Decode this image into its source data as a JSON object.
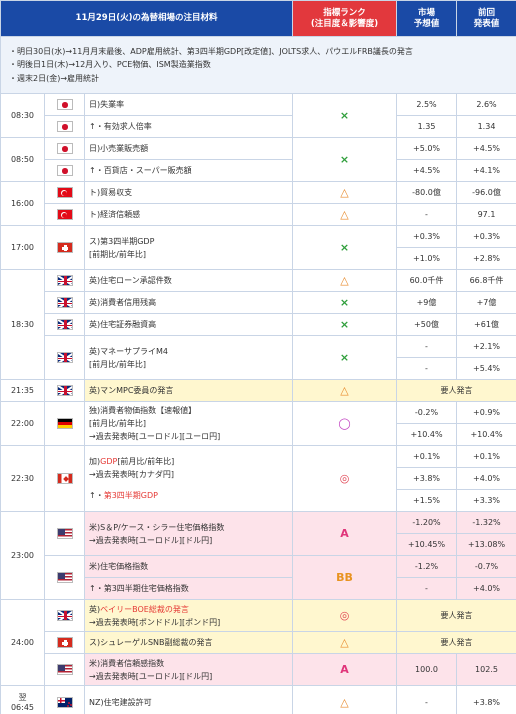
{
  "header": {
    "title": "11月29日(火)の為替相場の注目材料",
    "rank": "指標ランク",
    "rank_sub": "(注目度＆影響度)",
    "forecast": "市場",
    "forecast_sub": "予想値",
    "previous": "前回",
    "previous_sub": "発表値"
  },
  "notes": [
    "・明日30日(水)→11月月末最後、ADP雇用統計、第3四半期GDP[改定値]、JOLTS求人、パウエルFRB議長の発言",
    "・明後日1日(木)→12月入り、PCE物価、ISM製造業指数",
    "・週末2日(金)→雇用統計"
  ],
  "times": {
    "t0830": "08:30",
    "t0850": "08:50",
    "t1600": "16:00",
    "t1700": "17:00",
    "t1830": "18:30",
    "t2135": "21:35",
    "t2200": "22:00",
    "t2230": "22:30",
    "t2300": "23:00",
    "t2400": "24:00",
    "t0645a": "翌",
    "t0645b": "06:45"
  },
  "symbols": {
    "x": "×",
    "tri": "△",
    "circ": "◯",
    "dbl": "◎",
    "a": "A",
    "bb": "BB"
  },
  "rows": {
    "jp_unemp": {
      "name": "日)失業率",
      "f": "2.5%",
      "p": "2.6%"
    },
    "jp_jobs": {
      "name": "↑・有効求人倍率",
      "f": "1.35",
      "p": "1.34"
    },
    "jp_retail": {
      "name": "日)小売業販売額",
      "f": "+5.0%",
      "p": "+4.5%"
    },
    "jp_dept": {
      "name": "↑・百貨店・スーパー販売額",
      "f": "+4.5%",
      "p": "+4.1%"
    },
    "tr_trade": {
      "name": "ト)貿易収支",
      "f": "-80.0億",
      "p": "-96.0億"
    },
    "tr_conf": {
      "name": "ト)経済信頼感",
      "f": "-",
      "p": "97.1"
    },
    "ch_gdp": {
      "name1": "ス)第3四半期GDP",
      "name2": "[前期比/前年比]",
      "f1": "+0.3%",
      "p1": "+0.3%",
      "f2": "+1.0%",
      "p2": "+2.8%"
    },
    "gb_mort": {
      "name": "英)住宅ローン承認件数",
      "f": "60.0千件",
      "p": "66.8千件"
    },
    "gb_cons": {
      "name": "英)消費者信用残高",
      "f": "+9億",
      "p": "+7億"
    },
    "gb_sec": {
      "name": "英)住宅証券融資高",
      "f": "+50億",
      "p": "+61億"
    },
    "gb_m4": {
      "name1": "英)マネーサプライM4",
      "name2": "[前月比/前年比]",
      "f1": "-",
      "p1": "+2.1%",
      "f2": "-",
      "p2": "+5.4%"
    },
    "gb_mpc": {
      "name": "英)マンMPC委員の発言",
      "note": "要人発言"
    },
    "de_cpi": {
      "name1": "独)消費者物価指数【速報値】",
      "name2": "[前月比/前年比]",
      "name3": "→過去発表時[ユーロドル][ユーロ円]",
      "f1": "-0.2%",
      "p1": "+0.9%",
      "f2": "+10.4%",
      "p2": "+10.4%"
    },
    "ca_gdp": {
      "name1a": "加)",
      "name1b": "GDP",
      "name1c": "[前月比/前年比]",
      "name2": "→過去発表時[カナダ円]",
      "name3a": "↑・",
      "name3b": "第3四半期GDP",
      "f1": "+0.1%",
      "p1": "+0.1%",
      "f2": "+3.8%",
      "p2": "+4.0%",
      "f3": "+1.5%",
      "p3": "+3.3%"
    },
    "us_cs": {
      "name1": "米)S＆P/ケース・シラー住宅価格指数",
      "name2": "→過去発表時[ユーロドル][ドル円]",
      "f1": "-1.20%",
      "p1": "-1.32%",
      "f2": "+10.45%",
      "p2": "+13.08%"
    },
    "us_hpi": {
      "name": "米)住宅価格指数",
      "f": "-1.2%",
      "p": "-0.7%"
    },
    "us_hpi3": {
      "name": "↑・第3四半期住宅価格指数",
      "f": "-",
      "p": "+4.0%"
    },
    "gb_bailey": {
      "name1a": "英)",
      "name1b": "ベイリーBOE総裁の発言",
      "name2": "→過去発表時[ポンドドル][ポンド円]",
      "note": "要人発言"
    },
    "ch_schl": {
      "name": "ス)シュレーゲルSNB副総裁の発言",
      "note": "要人発言"
    },
    "us_conf": {
      "name1": "米)消費者信頼感指数",
      "name2": "→過去発表時[ユーロドル][ドル円]",
      "f": "100.0",
      "p": "102.5"
    },
    "nz_bld": {
      "name": "NZ)住宅建設許可",
      "f": "-",
      "p": "+3.8%"
    }
  },
  "colors": {
    "header_blue": "#1a4aa6",
    "header_red": "#e2383d",
    "x_green": "#2e9e3a",
    "yellow_bg": "#fff7cf",
    "pink_bg": "#fde3ea"
  }
}
